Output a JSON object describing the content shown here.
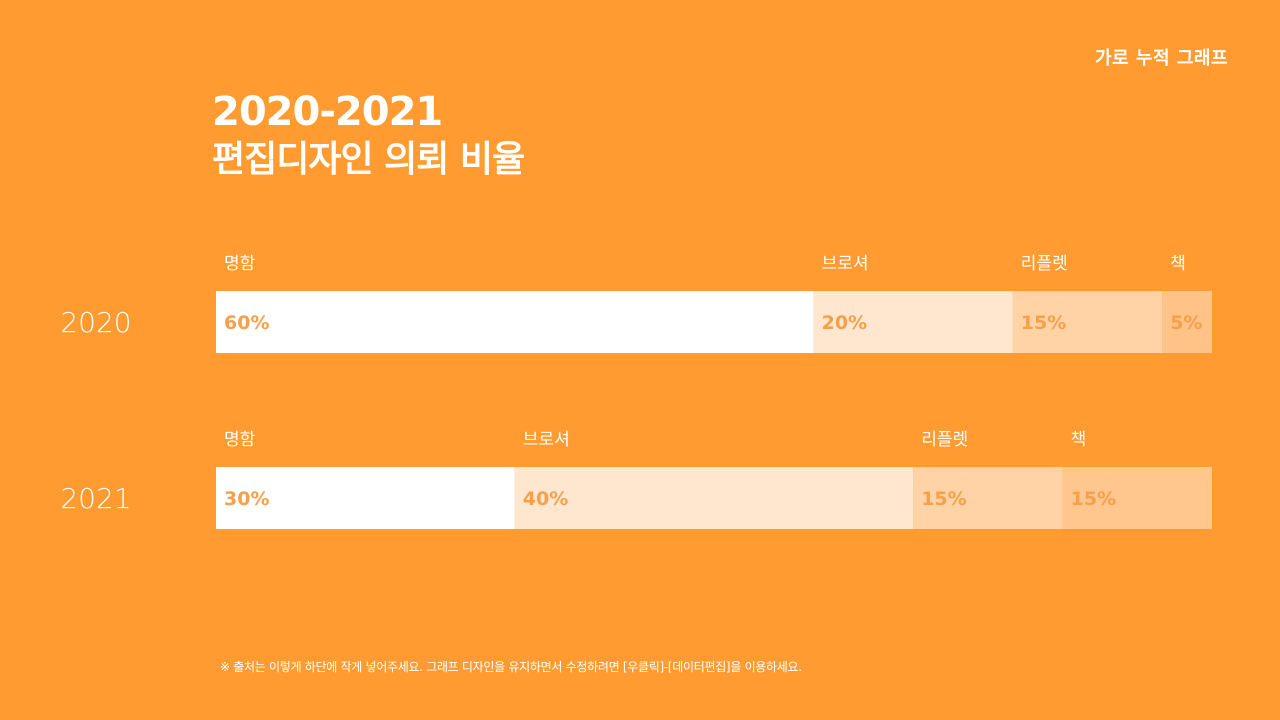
{
  "header": {
    "tag": "가로 누적 그래프"
  },
  "title": {
    "line1": "2020-2021",
    "line2": "편집디자인 의뢰 비율"
  },
  "colors": {
    "background": "#FF9B30",
    "segments": [
      "#FFFFFF",
      "#FFE6CF",
      "#FFD3A6",
      "#FFC388"
    ],
    "segments_2021": [
      "#FFFFFF",
      "#FFE6CF",
      "#FFD3A6",
      "#FFC68E"
    ],
    "percent_text": "#F5A04A"
  },
  "chart_data": {
    "type": "bar",
    "orientation": "horizontal",
    "stacked": true,
    "categories": [
      "명함",
      "브로셔",
      "리플렛",
      "책"
    ],
    "rows": [
      {
        "label": "2020",
        "values": [
          60,
          20,
          15,
          5
        ],
        "value_labels": [
          "60%",
          "20%",
          "15%",
          "5%"
        ]
      },
      {
        "label": "2021",
        "values": [
          30,
          40,
          15,
          15
        ],
        "value_labels": [
          "30%",
          "40%",
          "15%",
          "15%"
        ]
      }
    ],
    "xlim": [
      0,
      100
    ],
    "unit": "%",
    "legend": "category labels above each segment",
    "grid": false
  },
  "footnote": "※ 출처는 이렇게 하단에 작게 넣어주세요. 그래프 디자인을 유지하면서 수정하려면 [우클릭]-[데이터편집]을 이용하세요."
}
